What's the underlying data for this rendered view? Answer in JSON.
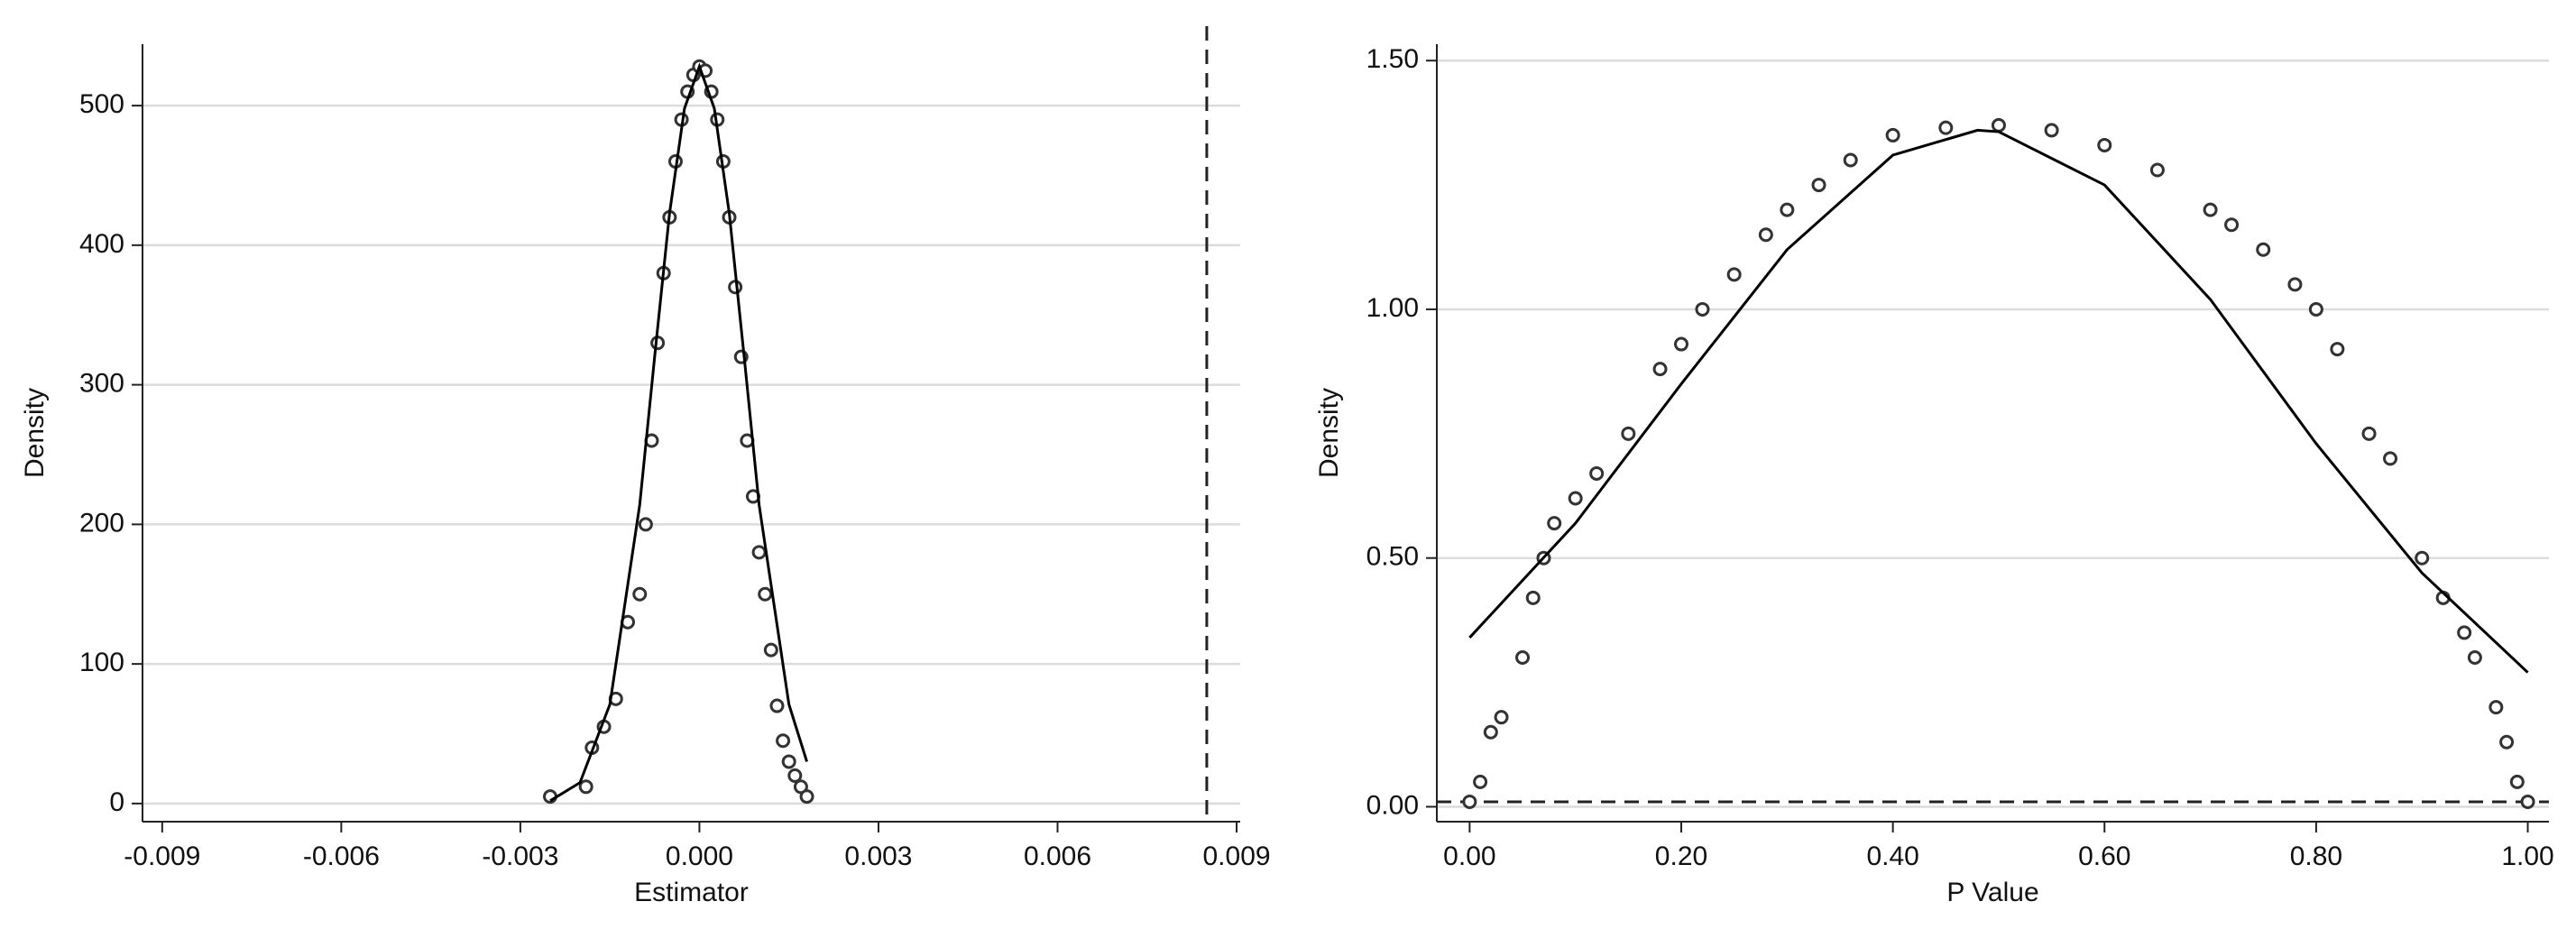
{
  "chart_data": [
    {
      "type": "line",
      "xlabel": "Estimator",
      "ylabel": "Density",
      "xlim": [
        -0.00933,
        0.00906
      ],
      "ylim": [
        -13,
        544
      ],
      "xticks": [
        -0.009,
        -0.006,
        -0.003,
        {
          "value": 0,
          "label": "0.000"
        },
        0.003,
        0.006,
        0.009
      ],
      "yticks": [
        0,
        100,
        200,
        300,
        400,
        500
      ],
      "grid": true,
      "series": [
        {
          "marker": "circle",
          "color": "#333333",
          "x": [
            -0.0025,
            -0.0019,
            -0.0018,
            -0.0016,
            -0.0014,
            -0.0012,
            -0.001,
            -0.0009,
            -0.0008,
            -0.0007,
            -0.0006,
            -0.0005,
            -0.0004,
            -0.0003,
            -0.0002,
            -0.0001,
            0,
            0.0001,
            0.0002,
            0.0003,
            0.0004,
            0.0005,
            0.0006,
            0.0007,
            0.0008,
            0.0009,
            0.001,
            0.0011,
            0.0012,
            0.0013,
            0.0014,
            0.0015,
            0.0016,
            0.0017,
            0.0018
          ],
          "values": [
            5,
            12,
            40,
            55,
            75,
            130,
            150,
            200,
            260,
            330,
            380,
            420,
            460,
            490,
            510,
            522,
            528,
            525,
            510,
            490,
            460,
            420,
            370,
            320,
            260,
            220,
            180,
            150,
            110,
            70,
            45,
            30,
            20,
            12,
            5
          ]
        },
        {
          "marker": "none",
          "color": "#000000",
          "x": [
            -0.0025,
            -0.002,
            -0.0015,
            -0.001,
            -0.00075,
            -0.0005,
            -0.00025,
            0,
            0.00025,
            0.0005,
            0.00075,
            0.001,
            0.0015,
            0.0018
          ],
          "values": [
            2,
            15,
            71,
            214,
            320,
            423,
            498,
            528,
            498,
            423,
            320,
            214,
            71,
            30
          ]
        }
      ],
      "ref_lines": [
        {
          "axis": "x",
          "value": 0.0085
        }
      ]
    },
    {
      "type": "line",
      "xlabel": "P Value",
      "ylabel": "Density",
      "xlim": [
        -0.031,
        1.02
      ],
      "ylim": [
        -0.03,
        1.533
      ],
      "xticks": [
        {
          "value": 0,
          "label": "0.00"
        },
        {
          "value": 0.2,
          "label": "0.20"
        },
        {
          "value": 0.4,
          "label": "0.40"
        },
        {
          "value": 0.6,
          "label": "0.60"
        },
        {
          "value": 0.8,
          "label": "0.80"
        },
        {
          "value": 1,
          "label": "1.00"
        }
      ],
      "yticks": [
        {
          "value": 0,
          "label": "0.00"
        },
        {
          "value": 0.5,
          "label": "0.50"
        },
        {
          "value": 1,
          "label": "1.00"
        },
        {
          "value": 1.5,
          "label": "1.50"
        }
      ],
      "grid": true,
      "series": [
        {
          "marker": "circle",
          "color": "#333333",
          "x": [
            0,
            0.01,
            0.02,
            0.03,
            0.05,
            0.06,
            0.07,
            0.08,
            0.1,
            0.12,
            0.15,
            0.18,
            0.2,
            0.22,
            0.25,
            0.28,
            0.3,
            0.33,
            0.36,
            0.4,
            0.45,
            0.5,
            0.55,
            0.6,
            0.65,
            0.7,
            0.72,
            0.75,
            0.78,
            0.8,
            0.82,
            0.85,
            0.87,
            0.9,
            0.92,
            0.94,
            0.95,
            0.97,
            0.98,
            0.99,
            1
          ],
          "values": [
            0.01,
            0.05,
            0.15,
            0.18,
            0.3,
            0.42,
            0.5,
            0.57,
            0.62,
            0.67,
            0.75,
            0.88,
            0.93,
            1,
            1.07,
            1.15,
            1.2,
            1.25,
            1.3,
            1.35,
            1.365,
            1.37,
            1.36,
            1.33,
            1.28,
            1.2,
            1.17,
            1.12,
            1.05,
            1,
            0.92,
            0.75,
            0.7,
            0.5,
            0.42,
            0.35,
            0.3,
            0.2,
            0.13,
            0.05,
            0.01
          ]
        },
        {
          "marker": "none",
          "color": "#000000",
          "x": [
            0,
            0.1,
            0.2,
            0.3,
            0.4,
            0.48,
            0.5,
            0.6,
            0.7,
            0.8,
            0.9,
            1
          ],
          "values": [
            0.34,
            0.57,
            0.85,
            1.12,
            1.31,
            1.36,
            1.357,
            1.25,
            1.02,
            0.73,
            0.47,
            0.27
          ]
        }
      ],
      "ref_lines": [
        {
          "axis": "y",
          "value": 0.01
        }
      ]
    }
  ]
}
